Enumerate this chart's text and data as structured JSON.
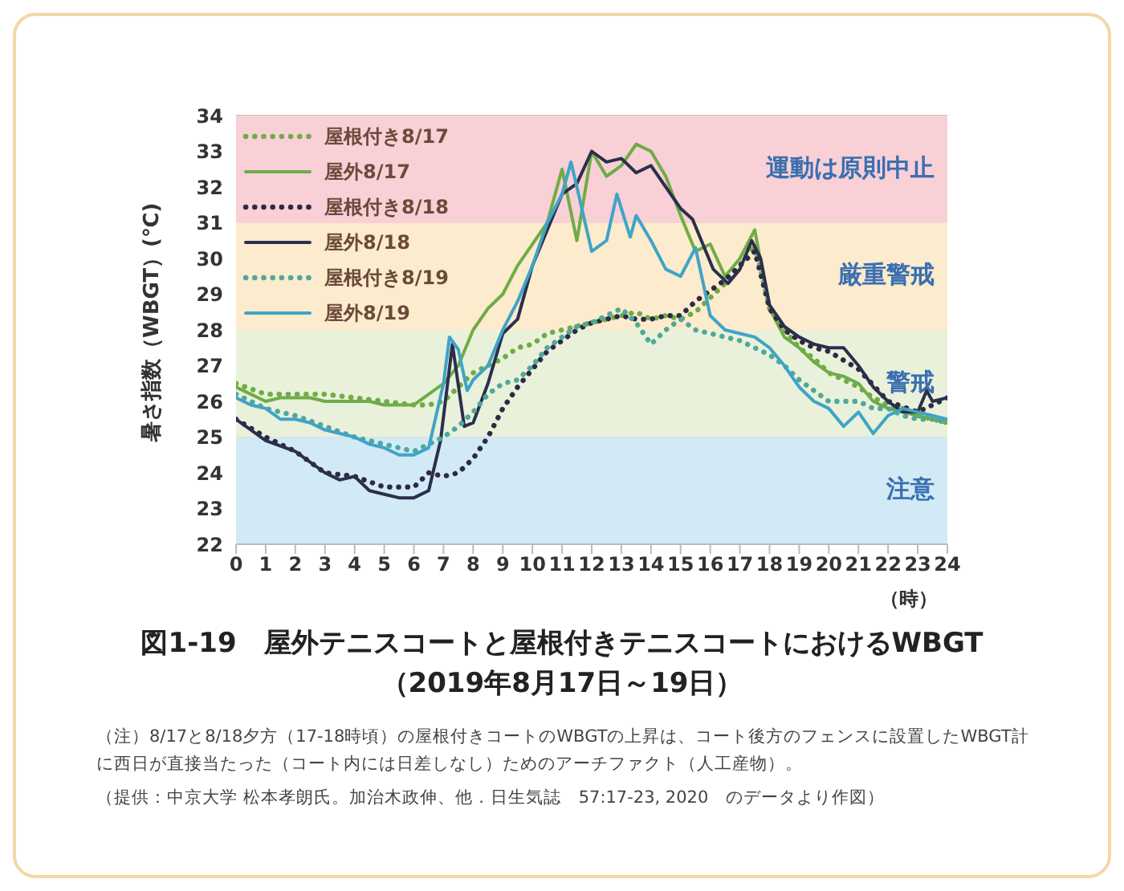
{
  "chart_data": {
    "type": "line",
    "title": "図1-19　屋外テニスコートと屋根付きテニスコートにおけるWBGT",
    "subtitle": "（2019年8月17日～19日）",
    "ylabel": "暑さ指数（WBGT）(℃)",
    "xlabel": "（時）",
    "xlim": [
      0,
      24
    ],
    "xticks": [
      0,
      1,
      2,
      3,
      4,
      5,
      6,
      7,
      8,
      9,
      10,
      11,
      12,
      13,
      14,
      15,
      16,
      17,
      18,
      19,
      20,
      21,
      22,
      23,
      24
    ],
    "ylim": [
      22,
      34
    ],
    "yticks": [
      22,
      23,
      24,
      25,
      26,
      27,
      28,
      29,
      30,
      31,
      32,
      33,
      34
    ],
    "grid": "y",
    "legend": "top left",
    "marker": "none",
    "bands": [
      {
        "axis": "y",
        "from": 31,
        "to": 34,
        "label": "運動は原則中止",
        "color": "#f9d0d6"
      },
      {
        "axis": "y",
        "from": 28,
        "to": 31,
        "label": "厳重警戒",
        "color": "#fcebcd"
      },
      {
        "axis": "y",
        "from": 25,
        "to": 28,
        "label": "警戒",
        "color": "#eaf1da"
      },
      {
        "axis": "y",
        "from": 22,
        "to": 25,
        "label": "注意",
        "color": "#d2eaf5"
      }
    ],
    "series": [
      {
        "name": "屋根付き8/17",
        "color": "#6fac46",
        "line_style": "dotted",
        "x": [
          0,
          1,
          2,
          3,
          4,
          5,
          6,
          6.5,
          7,
          7.5,
          8,
          8.5,
          9,
          9.5,
          10,
          10.5,
          11,
          11.5,
          12,
          12.5,
          13,
          13.5,
          14,
          14.5,
          15,
          15.5,
          16,
          16.5,
          17,
          17.5,
          18,
          18.5,
          19,
          19.5,
          20,
          20.5,
          21,
          21.5,
          22,
          22.5,
          23,
          23.5,
          24
        ],
        "values": [
          26.5,
          26.2,
          26.2,
          26.2,
          26.1,
          26.0,
          25.9,
          25.9,
          26.0,
          26.4,
          26.8,
          27.0,
          27.2,
          27.5,
          27.6,
          27.9,
          28.0,
          28.1,
          28.2,
          28.3,
          28.4,
          28.5,
          28.3,
          28.4,
          28.3,
          28.5,
          28.9,
          29.3,
          29.8,
          30.4,
          28.6,
          28.0,
          27.5,
          27.2,
          26.8,
          26.6,
          26.4,
          26.1,
          25.9,
          25.8,
          25.6,
          25.5,
          25.4
        ]
      },
      {
        "name": "屋外8/17",
        "color": "#6fac46",
        "line_style": "solid",
        "x": [
          0,
          0.5,
          1,
          1.5,
          2,
          2.5,
          3,
          3.5,
          4,
          4.5,
          5,
          5.5,
          6,
          6.5,
          7,
          7.5,
          8,
          8.5,
          9,
          9.5,
          10,
          10.5,
          11,
          11.5,
          12,
          12.5,
          13,
          13.5,
          14,
          14.5,
          15,
          15.5,
          16,
          16.5,
          17,
          17.5,
          18,
          18.5,
          19,
          19.5,
          20,
          20.5,
          21,
          21.5,
          22,
          22.5,
          23,
          23.5,
          24
        ],
        "values": [
          26.4,
          26.2,
          26.0,
          26.1,
          26.1,
          26.1,
          26.0,
          26.0,
          26.0,
          26.0,
          25.9,
          25.9,
          25.9,
          26.2,
          26.5,
          27.0,
          28.0,
          28.6,
          29.0,
          29.8,
          30.4,
          31.0,
          32.5,
          30.5,
          33.0,
          32.3,
          32.6,
          33.2,
          33.0,
          32.3,
          31.2,
          30.2,
          30.4,
          29.5,
          30.0,
          30.8,
          28.6,
          27.8,
          27.5,
          27.1,
          26.8,
          26.7,
          26.5,
          26.0,
          25.8,
          25.7,
          25.6,
          25.5,
          25.4
        ]
      },
      {
        "name": "屋根付き8/18",
        "color": "#2e2a45",
        "line_style": "dotted",
        "x": [
          0,
          1,
          2,
          3,
          4,
          5,
          6,
          6.5,
          7,
          7.5,
          8,
          8.5,
          9,
          9.5,
          10,
          10.5,
          11,
          11.5,
          12,
          12.5,
          13,
          13.5,
          14,
          14.5,
          15,
          15.5,
          16,
          16.5,
          17,
          17.5,
          18,
          18.5,
          19,
          19.5,
          20,
          21,
          22,
          23,
          24
        ],
        "values": [
          25.5,
          25.0,
          24.6,
          24.0,
          23.9,
          23.6,
          23.6,
          24.0,
          23.9,
          24.0,
          24.4,
          25.0,
          25.8,
          26.4,
          26.9,
          27.4,
          27.7,
          28.0,
          28.2,
          28.3,
          28.4,
          28.3,
          28.3,
          28.4,
          28.4,
          28.8,
          29.1,
          29.4,
          29.8,
          30.2,
          28.6,
          28.0,
          27.7,
          27.5,
          27.4,
          26.9,
          26.0,
          25.7,
          26.1
        ]
      },
      {
        "name": "屋外8/18",
        "color": "#2b2f4d",
        "line_style": "solid",
        "x": [
          0,
          1,
          2,
          3,
          3.5,
          4,
          4.5,
          5,
          5.5,
          6,
          6.5,
          6.9,
          7.3,
          7.7,
          8,
          8.5,
          9,
          9.5,
          10,
          10.5,
          11,
          11.5,
          12,
          12.5,
          13,
          13.5,
          14,
          14.5,
          15,
          15.4,
          16.1,
          16.6,
          17,
          17.4,
          17.7,
          18,
          18.5,
          19,
          19.5,
          20,
          20.5,
          21,
          21.5,
          22,
          22.5,
          23,
          23.3,
          23.5,
          24
        ],
        "values": [
          25.5,
          24.9,
          24.6,
          24.0,
          23.8,
          23.9,
          23.5,
          23.4,
          23.3,
          23.3,
          23.5,
          24.9,
          27.6,
          25.3,
          25.4,
          26.5,
          27.9,
          28.3,
          29.8,
          30.8,
          31.8,
          32.1,
          33.0,
          32.7,
          32.8,
          32.4,
          32.6,
          32.0,
          31.4,
          31.1,
          29.7,
          29.3,
          29.7,
          30.5,
          30.0,
          28.7,
          28.1,
          27.8,
          27.6,
          27.5,
          27.5,
          27.0,
          26.4,
          26.0,
          25.7,
          25.7,
          26.3,
          26.0,
          26.1
        ]
      },
      {
        "name": "屋根付き8/19",
        "color": "#4fa89c",
        "line_style": "dotted",
        "x": [
          0,
          1,
          2,
          3,
          4,
          5,
          6,
          6.5,
          7,
          7.5,
          8,
          8.5,
          9,
          9.5,
          10,
          10.5,
          11,
          11.5,
          12,
          12.5,
          13,
          13.5,
          14,
          14.5,
          15,
          15.5,
          16,
          16.5,
          17,
          17.5,
          18,
          18.5,
          19,
          19.5,
          20,
          20.5,
          21,
          21.5,
          22,
          22.5,
          23,
          23.5,
          24
        ],
        "values": [
          26.2,
          25.8,
          25.6,
          25.3,
          25.0,
          24.8,
          24.6,
          24.8,
          25.0,
          25.3,
          25.7,
          26.2,
          26.5,
          26.6,
          27.0,
          27.5,
          27.8,
          28.1,
          28.2,
          28.4,
          28.6,
          28.2,
          27.6,
          28.0,
          28.3,
          28.0,
          27.9,
          27.8,
          27.7,
          27.5,
          27.3,
          27.0,
          26.6,
          26.3,
          26.0,
          26.0,
          26.0,
          25.8,
          25.8,
          25.6,
          25.5,
          25.5,
          25.4
        ]
      },
      {
        "name": "屋外8/19",
        "color": "#3fa4c6",
        "line_style": "solid",
        "x": [
          0,
          0.5,
          1,
          1.5,
          2,
          2.5,
          3,
          3.5,
          4,
          4.5,
          5,
          5.5,
          6,
          6.5,
          7,
          7.2,
          7.5,
          7.8,
          8,
          8.5,
          9,
          9.5,
          10,
          10.5,
          11,
          11.3,
          11.5,
          12,
          12.5,
          12.85,
          13.3,
          13.5,
          14,
          14.5,
          15,
          15.5,
          16,
          16.5,
          17,
          17.5,
          18,
          18.5,
          19,
          19.5,
          20,
          20.5,
          21,
          21.5,
          22,
          22.5,
          23,
          23.5,
          24
        ],
        "values": [
          26.1,
          25.9,
          25.8,
          25.5,
          25.5,
          25.4,
          25.2,
          25.1,
          25.0,
          24.8,
          24.7,
          24.5,
          24.5,
          24.7,
          26.5,
          27.8,
          27.45,
          26.3,
          26.6,
          27.0,
          28.0,
          28.8,
          29.8,
          31.0,
          31.8,
          32.7,
          32.0,
          30.2,
          30.5,
          31.8,
          30.6,
          31.2,
          30.5,
          29.7,
          29.5,
          30.3,
          28.4,
          28.0,
          27.9,
          27.8,
          27.5,
          27.0,
          26.4,
          26.0,
          25.8,
          25.3,
          25.7,
          25.1,
          25.6,
          25.8,
          25.7,
          25.6,
          25.5
        ]
      }
    ],
    "annotations": [
      "（注）8/17と8/18夕方（17-18時頃）の屋根付きコートのWBGTの上昇は、コート後方のフェンスに設置したWBGT計に西日が直接当たった（コート内には日差しなし）ためのアーチファクト（人工産物）。",
      "（提供：中京大学 松本孝朗氏。加治木政伸、他．日生気誌　57:17-23, 2020　のデータより作図）"
    ]
  }
}
